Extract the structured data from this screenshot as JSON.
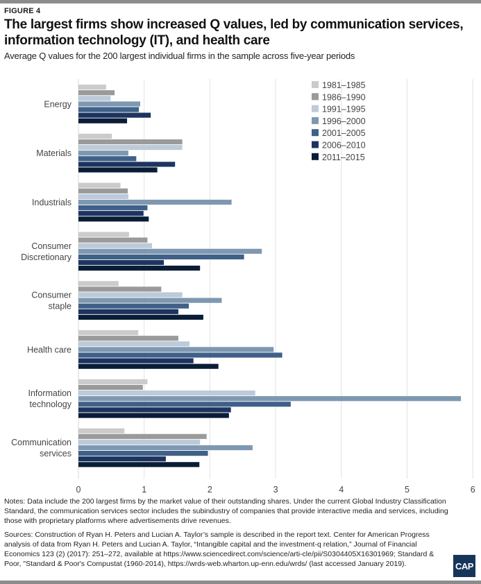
{
  "figure_label": "FIGURE 4",
  "title": "The largest firms show increased Q values, led by communication services, information technology (IT), and health care",
  "subtitle": "Average Q values for the 200 largest individual firms in the sample across five-year periods",
  "notes": "Notes: Data include the 200 largest firms by the market value of their outstanding shares. Under the current Global Industry Classification Standard, the communication services sector includes the subindustry of companies that provide interactive media and services, including those with proprietary platforms where advertisements drive revenues.",
  "sources": "Sources: Construction of Ryan H. Peters and Lucian A. Taylor’s sample is described in the report text. Center for American Progress analysis of data from Ryan H. Peters and Lucian A. Taylor, “Intangible capital and the investment-q relation,” Journal of Financial Economics 123 (2) (2017): 251–272, available at https://www.sciencedirect.com/science/arti-cle/pii/S0304405X16301969; Standard & Poor, \"Standard & Poor's Compustat (1960-2014), https://wrds-web.wharton.up-enn.edu/wrds/ (last accessed January 2019).",
  "logo_text": "CAP",
  "chart_data": {
    "type": "bar",
    "orientation": "horizontal",
    "title": "The largest firms show increased Q values, led by communication services, information technology (IT), and health care",
    "subtitle": "Average Q values for the 200 largest individual firms in the sample across five-year periods",
    "xlabel": "",
    "ylabel": "",
    "xlim": [
      0,
      6
    ],
    "xticks": [
      0,
      1,
      2,
      3,
      4,
      5,
      6
    ],
    "grid": true,
    "legend_position": "top-right",
    "categories": [
      [
        "Energy"
      ],
      [
        "Materials"
      ],
      [
        "Industrials"
      ],
      [
        "Consumer",
        "Discretionary"
      ],
      [
        "Consumer",
        "staple"
      ],
      [
        "Health care"
      ],
      [
        "Information",
        "technology"
      ],
      [
        "Communication",
        "services"
      ]
    ],
    "series": [
      {
        "name": "1981–1985",
        "color": "#cbcbcb",
        "values": [
          0.42,
          0.51,
          0.64,
          0.77,
          0.61,
          0.91,
          1.05,
          0.7
        ]
      },
      {
        "name": "1986–1990",
        "color": "#9a9a9a",
        "values": [
          0.55,
          1.58,
          0.75,
          1.05,
          1.26,
          1.52,
          0.98,
          1.95
        ]
      },
      {
        "name": "1991–1995",
        "color": "#bccad9",
        "values": [
          0.49,
          1.58,
          0.76,
          1.12,
          1.58,
          1.69,
          2.69,
          1.85
        ]
      },
      {
        "name": "1996–2000",
        "color": "#7f98b1",
        "values": [
          0.94,
          0.76,
          2.33,
          2.79,
          2.18,
          2.97,
          5.82,
          2.65
        ]
      },
      {
        "name": "2001–2005",
        "color": "#3f6188",
        "values": [
          0.92,
          0.88,
          1.05,
          2.52,
          1.68,
          3.1,
          3.23,
          1.97
        ]
      },
      {
        "name": "2006–2010",
        "color": "#1d3461",
        "values": [
          1.1,
          1.47,
          0.99,
          1.3,
          1.52,
          1.75,
          2.32,
          1.33
        ]
      },
      {
        "name": "2011–2015",
        "color": "#0a1d36",
        "values": [
          0.74,
          1.2,
          1.07,
          1.85,
          1.9,
          2.13,
          2.29,
          1.84
        ]
      }
    ]
  }
}
